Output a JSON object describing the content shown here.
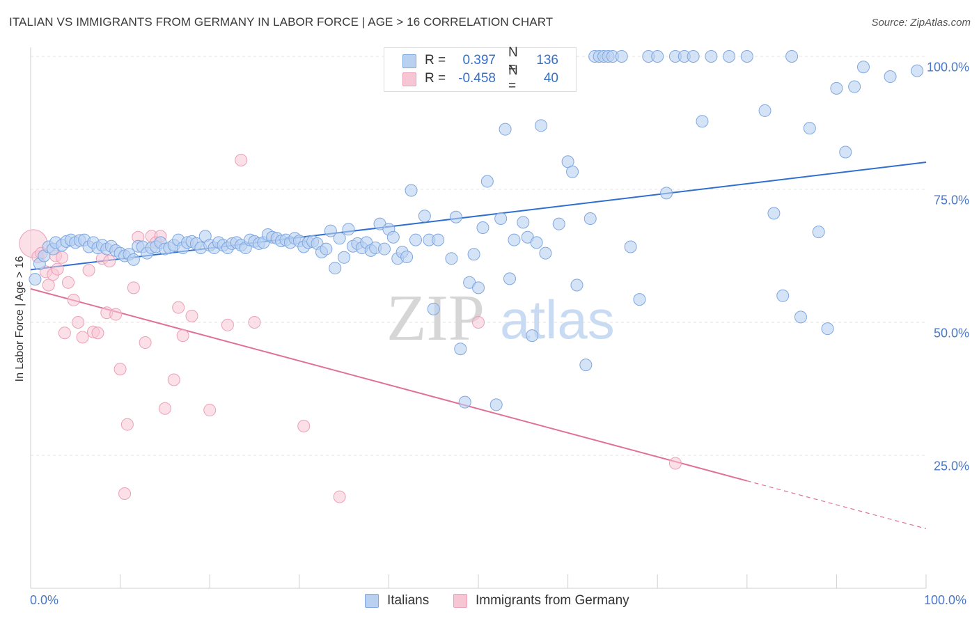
{
  "header": {
    "title": "ITALIAN VS IMMIGRANTS FROM GERMANY IN LABOR FORCE | AGE > 16 CORRELATION CHART",
    "source": "Source: ZipAtlas.com"
  },
  "watermark": {
    "zip": "ZIP",
    "atlas": "atlas"
  },
  "colors": {
    "italians_fill": "#b9d0f1",
    "italians_stroke": "#7ea7e0",
    "italians_line": "#2f6fce",
    "germany_fill": "#f7c6d5",
    "germany_stroke": "#eba0b8",
    "germany_line": "#e0709a",
    "tick_text": "#4a78c8"
  },
  "legend": {
    "rows": [
      {
        "r_label": "R =",
        "r_value": "0.397",
        "n_label": "N =",
        "n_value": "136"
      },
      {
        "r_label": "R =",
        "r_value": "-0.458",
        "n_label": "N =",
        "n_value": "40"
      }
    ]
  },
  "bottom_legend": {
    "italians": "Italians",
    "germany": "Immigrants from Germany"
  },
  "chart_data": {
    "type": "scatter",
    "title": "ITALIAN VS IMMIGRANTS FROM GERMANY IN LABOR FORCE | AGE > 16 CORRELATION CHART",
    "ylabel": "In Labor Force | Age > 16",
    "xlabel": "",
    "x_tick_labels": [
      "0.0%",
      "100.0%"
    ],
    "y_tick_labels": [
      "25.0%",
      "50.0%",
      "75.0%",
      "100.0%"
    ],
    "xlim": [
      0,
      100
    ],
    "ylim": [
      0,
      102
    ],
    "grid": true,
    "legend_position": "top-center",
    "series": [
      {
        "name": "Italians",
        "R": 0.397,
        "N": 136,
        "trend": {
          "x": [
            0,
            100
          ],
          "y": [
            59.9,
            80.1
          ]
        },
        "points": [
          [
            0.5,
            58.1
          ],
          [
            1,
            61.0
          ],
          [
            1.5,
            62.5
          ],
          [
            2,
            64.2
          ],
          [
            2.5,
            63.8
          ],
          [
            2.8,
            65.0
          ],
          [
            3.5,
            64.5
          ],
          [
            4,
            65.2
          ],
          [
            4.5,
            65.5
          ],
          [
            5,
            65.0
          ],
          [
            5.5,
            65.4
          ],
          [
            6,
            65.5
          ],
          [
            6.5,
            64.2
          ],
          [
            7,
            65.0
          ],
          [
            7.5,
            64.0
          ],
          [
            8,
            64.5
          ],
          [
            8.5,
            63.8
          ],
          [
            9,
            64.3
          ],
          [
            9.5,
            63.5
          ],
          [
            10,
            63.0
          ],
          [
            10.5,
            62.5
          ],
          [
            11,
            62.8
          ],
          [
            11.5,
            61.8
          ],
          [
            12,
            64.3
          ],
          [
            12.5,
            64.2
          ],
          [
            13,
            63.0
          ],
          [
            13.5,
            64.0
          ],
          [
            14,
            64.2
          ],
          [
            14.5,
            65.0
          ],
          [
            15,
            63.8
          ],
          [
            15.5,
            64.0
          ],
          [
            16,
            64.5
          ],
          [
            16.5,
            65.5
          ],
          [
            17,
            64.0
          ],
          [
            17.5,
            65.0
          ],
          [
            18,
            65.2
          ],
          [
            18.5,
            64.8
          ],
          [
            19,
            64.0
          ],
          [
            19.5,
            66.2
          ],
          [
            20,
            64.5
          ],
          [
            20.5,
            64.0
          ],
          [
            21,
            65.0
          ],
          [
            21.5,
            64.5
          ],
          [
            22,
            64.0
          ],
          [
            22.5,
            64.8
          ],
          [
            23,
            65.0
          ],
          [
            23.5,
            64.5
          ],
          [
            24,
            64.0
          ],
          [
            24.5,
            65.5
          ],
          [
            25,
            65.2
          ],
          [
            25.5,
            64.8
          ],
          [
            26,
            65.0
          ],
          [
            26.5,
            66.5
          ],
          [
            27,
            66.0
          ],
          [
            27.5,
            65.8
          ],
          [
            28,
            65.3
          ],
          [
            28.5,
            65.5
          ],
          [
            29,
            65.0
          ],
          [
            29.5,
            65.8
          ],
          [
            30,
            65.3
          ],
          [
            30.5,
            64.2
          ],
          [
            31,
            65.0
          ],
          [
            31.5,
            65.2
          ],
          [
            32,
            64.8
          ],
          [
            32.5,
            63.2
          ],
          [
            33,
            63.8
          ],
          [
            33.5,
            67.2
          ],
          [
            34,
            60.2
          ],
          [
            34.5,
            65.8
          ],
          [
            35,
            62.2
          ],
          [
            35.5,
            67.5
          ],
          [
            36,
            64.3
          ],
          [
            36.5,
            64.8
          ],
          [
            37,
            64.0
          ],
          [
            37.5,
            65.0
          ],
          [
            38,
            63.5
          ],
          [
            38.5,
            64.0
          ],
          [
            39,
            68.5
          ],
          [
            39.5,
            63.8
          ],
          [
            40,
            67.5
          ],
          [
            40.5,
            66.0
          ],
          [
            41,
            62.0
          ],
          [
            41.5,
            63.2
          ],
          [
            42,
            62.3
          ],
          [
            42.5,
            74.8
          ],
          [
            43,
            65.5
          ],
          [
            44,
            70.0
          ],
          [
            44.5,
            65.5
          ],
          [
            45,
            52.5
          ],
          [
            45.5,
            65.5
          ],
          [
            47,
            62.0
          ],
          [
            47.5,
            69.8
          ],
          [
            48,
            45.0
          ],
          [
            48.5,
            35.0
          ],
          [
            49,
            57.5
          ],
          [
            49.5,
            62.8
          ],
          [
            50,
            56.5
          ],
          [
            50.5,
            67.8
          ],
          [
            51,
            76.5
          ],
          [
            52,
            34.5
          ],
          [
            52.5,
            69.5
          ],
          [
            53,
            86.3
          ],
          [
            53.5,
            58.2
          ],
          [
            54,
            65.5
          ],
          [
            55,
            68.8
          ],
          [
            55.5,
            66.0
          ],
          [
            56,
            47.5
          ],
          [
            56.5,
            65.0
          ],
          [
            57,
            87.0
          ],
          [
            57.5,
            63.0
          ],
          [
            59,
            68.5
          ],
          [
            60,
            80.2
          ],
          [
            60.5,
            78.3
          ],
          [
            61,
            57.0
          ],
          [
            62,
            42.0
          ],
          [
            62.5,
            69.5
          ],
          [
            63,
            100.0
          ],
          [
            63.5,
            100.0
          ],
          [
            64,
            100.0
          ],
          [
            64.5,
            100.0
          ],
          [
            65,
            100.0
          ],
          [
            66,
            100.0
          ],
          [
            67,
            64.2
          ],
          [
            68,
            54.3
          ],
          [
            69,
            100.0
          ],
          [
            70,
            100.0
          ],
          [
            71,
            74.3
          ],
          [
            72,
            100.0
          ],
          [
            73,
            100.0
          ],
          [
            74,
            100.0
          ],
          [
            75,
            87.8
          ],
          [
            76,
            100.0
          ],
          [
            78,
            100.0
          ],
          [
            80,
            100.0
          ],
          [
            82,
            89.8
          ],
          [
            83,
            70.5
          ],
          [
            84,
            55.0
          ],
          [
            85,
            100.0
          ],
          [
            86,
            51.0
          ],
          [
            87,
            86.5
          ],
          [
            88,
            67.0
          ],
          [
            89,
            48.8
          ],
          [
            90,
            94.0
          ],
          [
            91,
            82.0
          ],
          [
            92,
            94.3
          ],
          [
            93,
            98.0
          ],
          [
            96,
            96.2
          ],
          [
            99,
            97.3
          ]
        ]
      },
      {
        "name": "Immigrants from Germany",
        "R": -0.458,
        "N": 40,
        "trend": {
          "x": [
            0,
            80
          ],
          "y": [
            56.3,
            20.2
          ]
        },
        "trend_dashed": {
          "x": [
            80,
            100
          ],
          "y": [
            20.2,
            11.2
          ]
        },
        "points": [
          [
            0.3,
            64.8
          ],
          [
            0.8,
            62.3
          ],
          [
            1.2,
            63.0
          ],
          [
            1.7,
            59.5
          ],
          [
            2,
            57.0
          ],
          [
            2.5,
            59.0
          ],
          [
            2.8,
            62.5
          ],
          [
            3,
            60.0
          ],
          [
            3.5,
            62.2
          ],
          [
            3.8,
            48.0
          ],
          [
            4.2,
            57.5
          ],
          [
            4.8,
            54.2
          ],
          [
            5.3,
            50.0
          ],
          [
            5.8,
            47.2
          ],
          [
            6.5,
            59.8
          ],
          [
            7,
            48.2
          ],
          [
            7.5,
            48.0
          ],
          [
            8,
            62.0
          ],
          [
            8.5,
            51.8
          ],
          [
            8.8,
            61.5
          ],
          [
            9.5,
            51.5
          ],
          [
            10,
            41.2
          ],
          [
            10.5,
            17.8
          ],
          [
            10.8,
            30.8
          ],
          [
            11.5,
            56.5
          ],
          [
            12,
            66.0
          ],
          [
            12.8,
            46.2
          ],
          [
            13.5,
            66.2
          ],
          [
            14,
            65.0
          ],
          [
            14.5,
            66.2
          ],
          [
            15,
            33.8
          ],
          [
            16,
            39.2
          ],
          [
            16.5,
            52.8
          ],
          [
            17,
            47.5
          ],
          [
            18,
            51.2
          ],
          [
            20,
            33.5
          ],
          [
            22,
            49.5
          ],
          [
            23.5,
            80.5
          ],
          [
            25,
            50.0
          ],
          [
            30.5,
            30.5
          ],
          [
            34.5,
            17.2
          ],
          [
            50,
            50.0
          ],
          [
            72,
            23.5
          ]
        ]
      }
    ]
  }
}
